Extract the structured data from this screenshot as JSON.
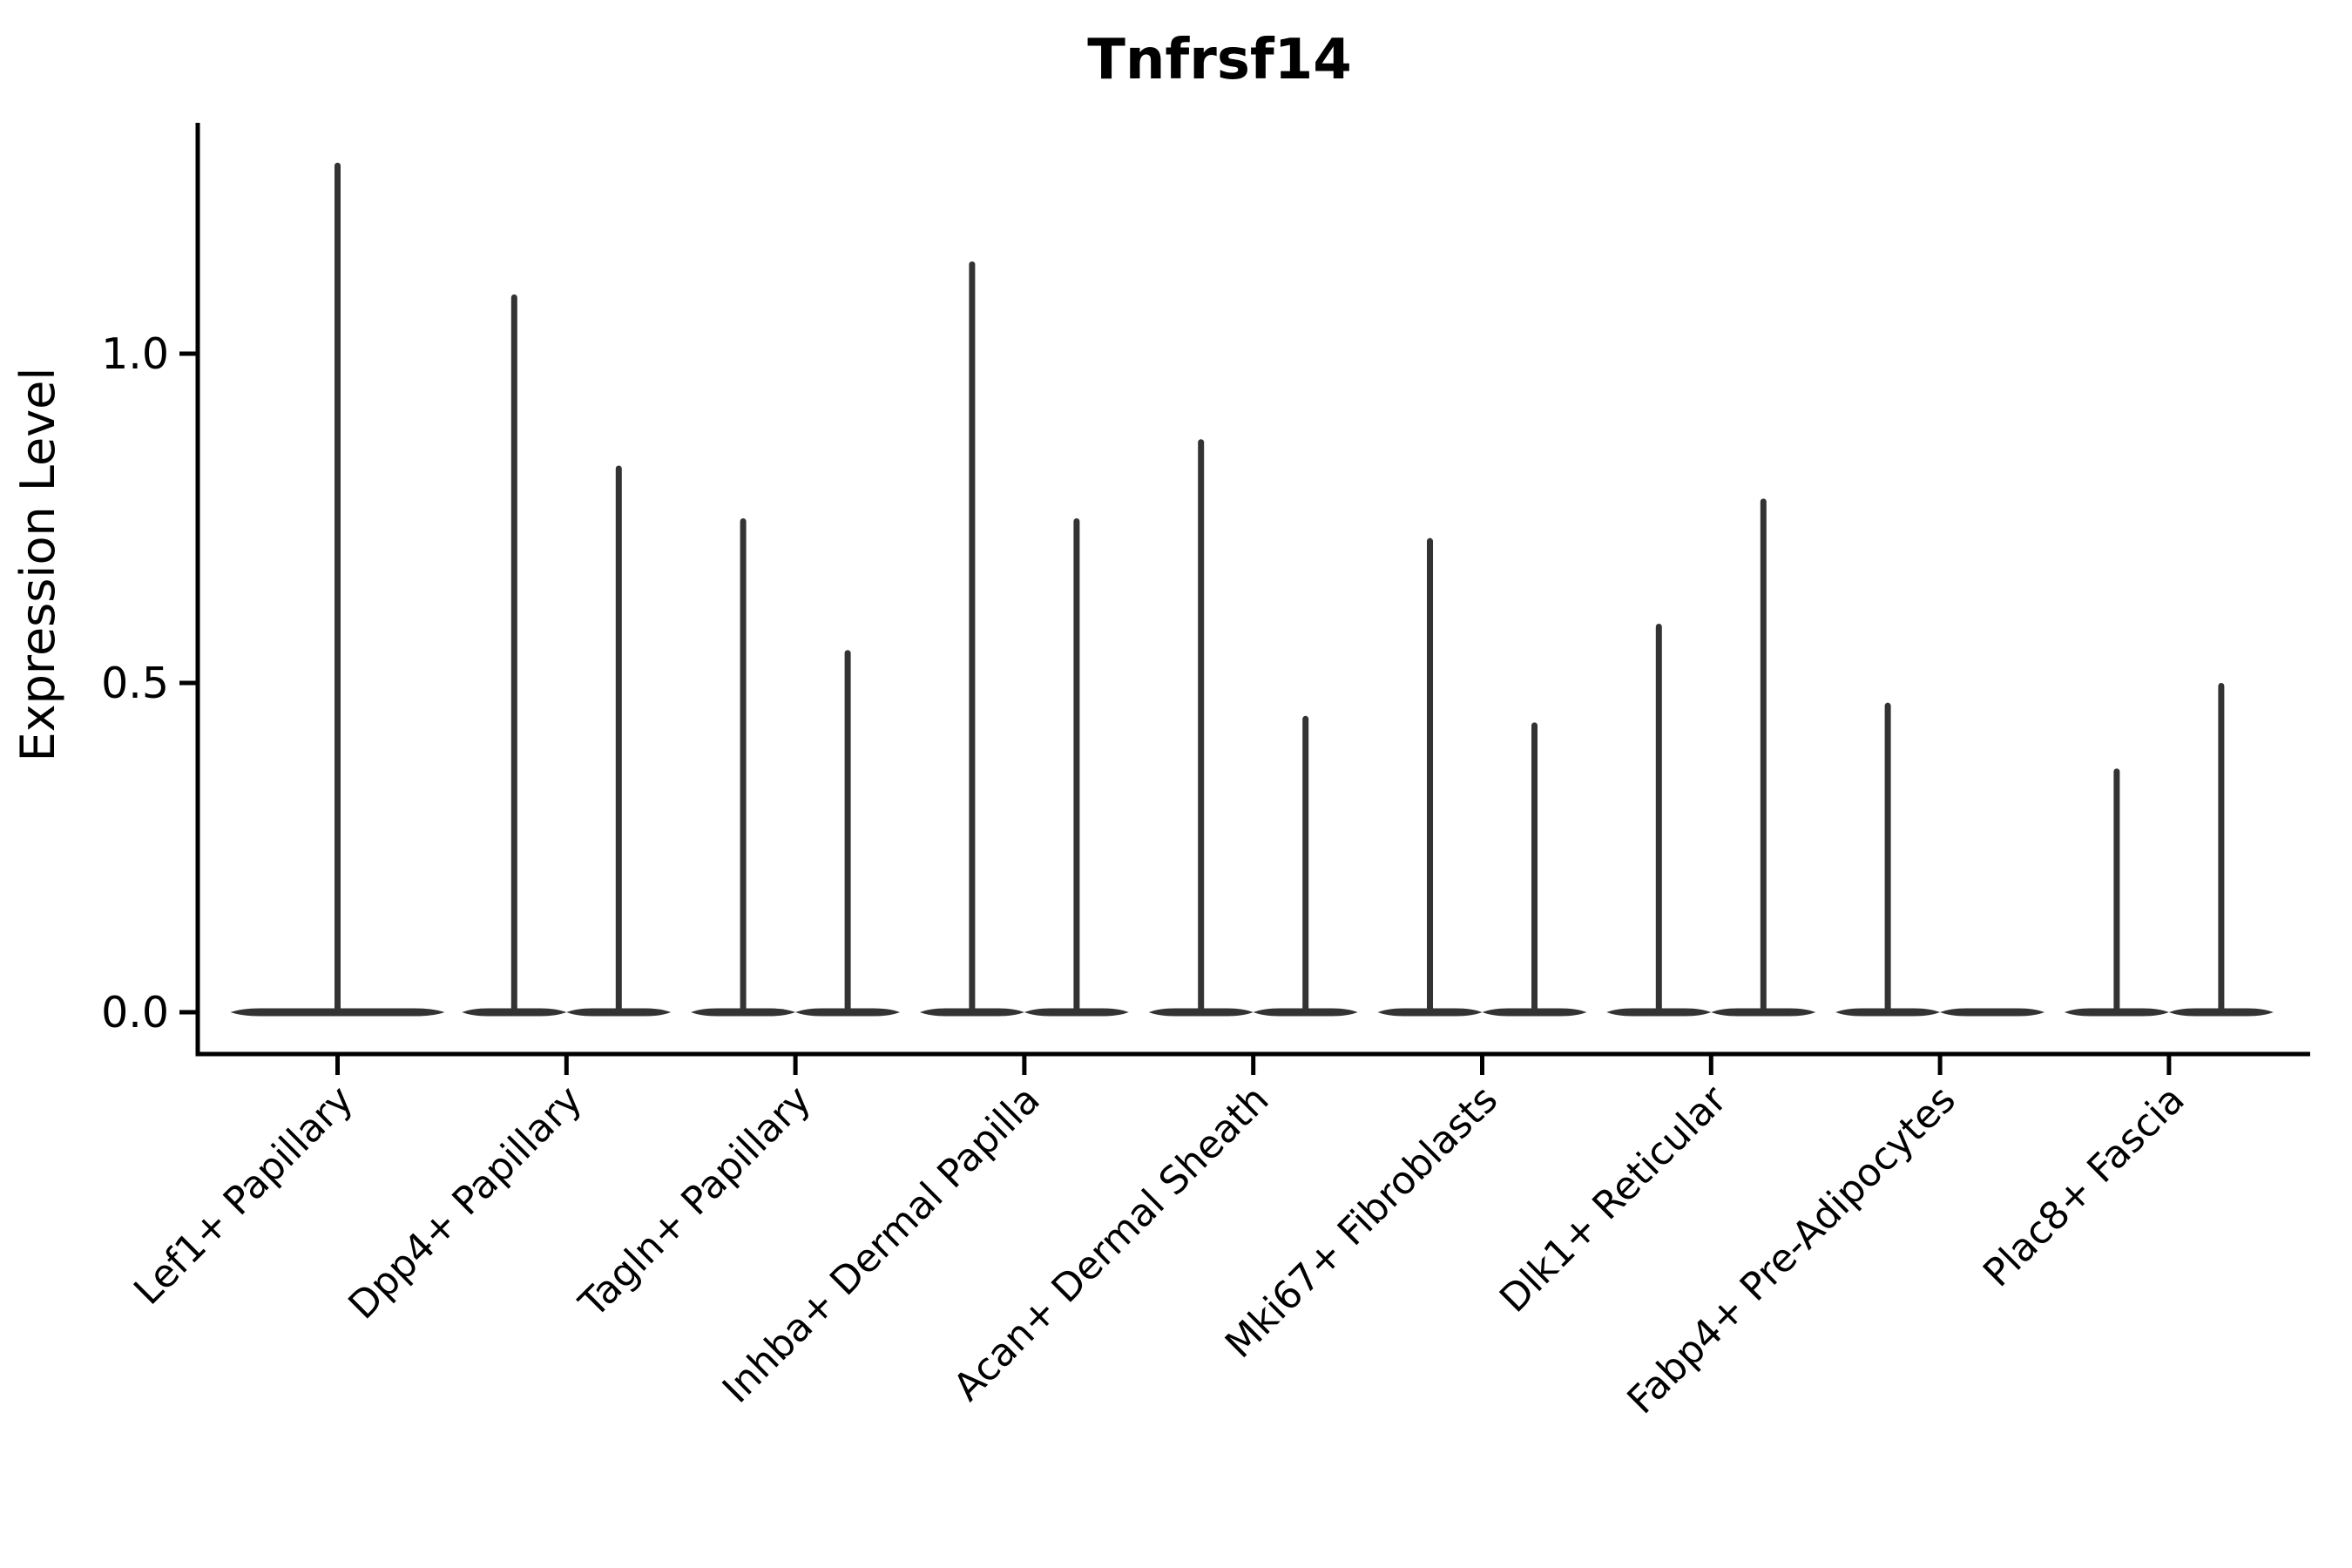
{
  "chart_data": {
    "type": "violin",
    "title": "Tnfrsf14",
    "xlabel": "",
    "ylabel": "Expression Level",
    "ytick_labels": [
      "0.0",
      "0.5",
      "1.0"
    ],
    "ytick_values": [
      0.0,
      0.5,
      1.0
    ],
    "ylim": [
      -0.06,
      1.36
    ],
    "grid": "off",
    "legend": "none",
    "violin_shape": "flat-zero-density-base-with-thin-spike-to-max",
    "categories": [
      "Lef1+ Papillary",
      "Dpp4+ Papillary",
      "Tagln+ Papillary",
      "Inhba+ Dermal Papilla",
      "Acan+ Dermal Sheath",
      "Mki67+ Fibroblasts",
      "Dlk1+ Reticular",
      "Fabp4+ Pre-Adipocytes",
      "Plac8+ Fascia"
    ],
    "series": [
      {
        "name": "left-violin",
        "max_values": [
          1.29,
          1.09,
          0.75,
          1.14,
          0.87,
          0.72,
          0.59,
          0.47,
          0.37
        ]
      },
      {
        "name": "right-violin",
        "max_values": [
          null,
          0.83,
          0.55,
          0.75,
          0.45,
          0.44,
          0.78,
          0.0,
          0.5
        ]
      }
    ],
    "colors": {
      "violin": "#333333",
      "axis": "#000000",
      "text": "#000000",
      "background": "#ffffff"
    }
  }
}
